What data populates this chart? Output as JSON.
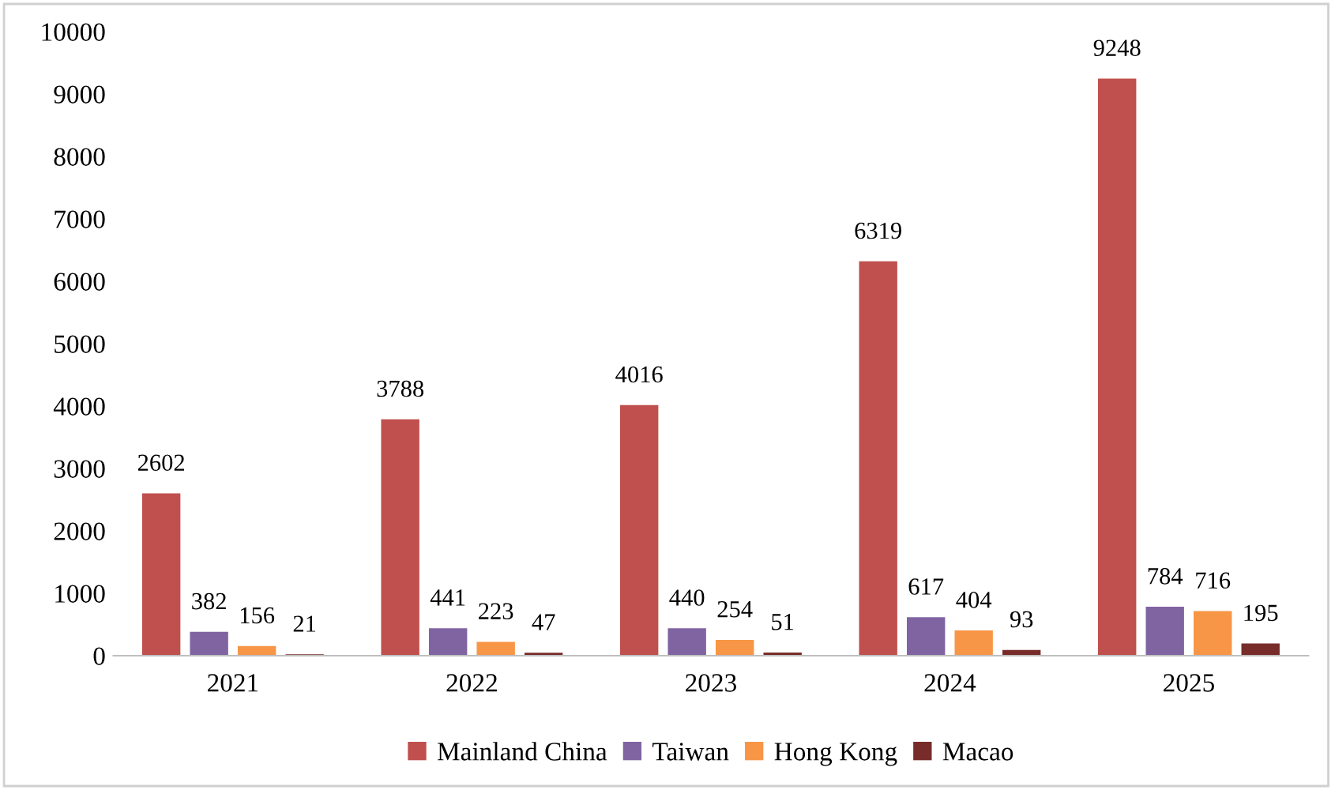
{
  "chart_data": {
    "type": "bar",
    "categories": [
      "2021",
      "2022",
      "2023",
      "2024",
      "2025"
    ],
    "series": [
      {
        "name": "Mainland China",
        "color": "#c0504d",
        "values": [
          2602,
          3788,
          4016,
          6319,
          9248
        ]
      },
      {
        "name": "Taiwan",
        "color": "#8064a2",
        "values": [
          382,
          441,
          440,
          617,
          784
        ]
      },
      {
        "name": "Hong Kong",
        "color": "#f79646",
        "values": [
          156,
          223,
          254,
          404,
          716
        ]
      },
      {
        "name": "Macao",
        "color": "#772c2a",
        "values": [
          21,
          47,
          51,
          93,
          195
        ]
      }
    ],
    "ylim": [
      0,
      10000
    ],
    "yticks": [
      0,
      1000,
      2000,
      3000,
      4000,
      5000,
      6000,
      7000,
      8000,
      9000,
      10000
    ],
    "data_labels": true,
    "grid": false,
    "legend": "bottom"
  }
}
